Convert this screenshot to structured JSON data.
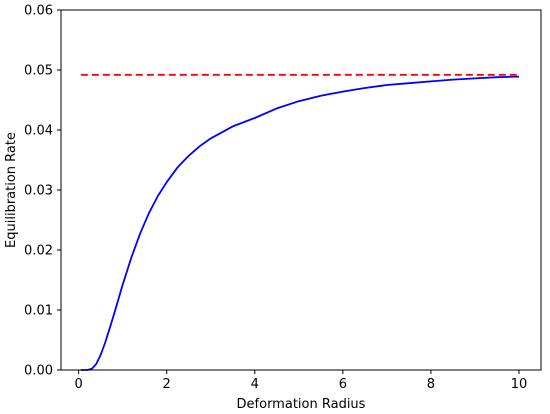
{
  "chart_data": {
    "type": "line",
    "title": "",
    "xlabel": "Deformation Radius",
    "ylabel": "Equilibration Rate",
    "xlim": [
      -0.4,
      10.5
    ],
    "ylim": [
      0.0,
      0.06
    ],
    "xticks": [
      0,
      2,
      4,
      6,
      8,
      10
    ],
    "yticks": [
      0.0,
      0.01,
      0.02,
      0.03,
      0.04,
      0.05,
      0.06
    ],
    "xtick_labels": [
      "0",
      "2",
      "4",
      "6",
      "8",
      "10"
    ],
    "ytick_labels": [
      "0.00",
      "0.01",
      "0.02",
      "0.03",
      "0.04",
      "0.05",
      "0.06"
    ],
    "grid": false,
    "legend": false,
    "series": [
      {
        "style": "solid",
        "color": "#0000ff",
        "x": [
          0.05,
          0.1,
          0.2,
          0.3,
          0.4,
          0.5,
          0.6,
          0.7,
          0.8,
          0.9,
          1.0,
          1.2,
          1.4,
          1.6,
          1.8,
          2.0,
          2.25,
          2.5,
          2.75,
          3.0,
          3.5,
          4.0,
          4.5,
          5.0,
          5.5,
          6.0,
          6.5,
          7.0,
          7.5,
          8.0,
          8.5,
          9.0,
          9.5,
          10.0
        ],
        "y": [
          0.0,
          0.0,
          0.0,
          0.0002,
          0.001,
          0.0025,
          0.0045,
          0.0068,
          0.0092,
          0.0117,
          0.0142,
          0.0188,
          0.0228,
          0.0262,
          0.029,
          0.0313,
          0.0338,
          0.0357,
          0.0373,
          0.0386,
          0.0406,
          0.042,
          0.0436,
          0.0448,
          0.0457,
          0.0464,
          0.047,
          0.0475,
          0.0478,
          0.0481,
          0.0484,
          0.0486,
          0.0488,
          0.0489
        ]
      },
      {
        "style": "dashed",
        "color": "#ff0000",
        "x": [
          0.05,
          10.0
        ],
        "y": [
          0.0492,
          0.0492
        ]
      }
    ]
  }
}
